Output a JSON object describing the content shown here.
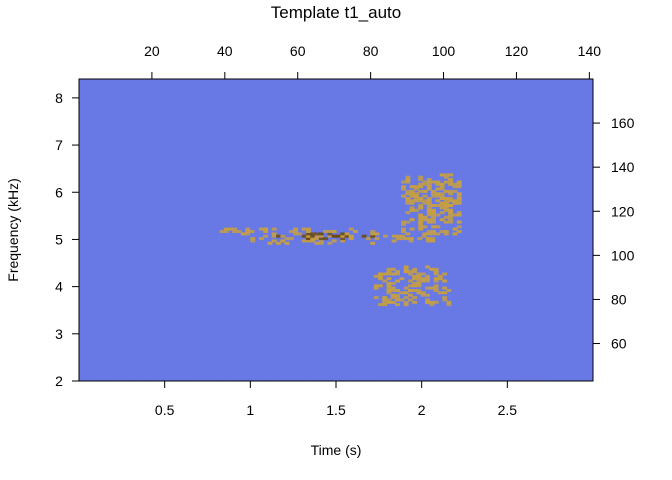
{
  "chart_data": {
    "type": "heatmap",
    "title": "Template t1_auto",
    "xlabel": "Time (s)",
    "ylabel": "Frequency (kHz)",
    "xlim": [
      0,
      3.0
    ],
    "ylim": [
      2,
      8.4
    ],
    "top_axis_lim": [
      0,
      141
    ],
    "right_axis_lim": [
      43,
      180
    ],
    "x_ticks": [
      "0.5",
      "1",
      "1.5",
      "2",
      "2.5"
    ],
    "y_ticks": [
      "2",
      "3",
      "4",
      "5",
      "6",
      "7",
      "8"
    ],
    "top_ticks": [
      "20",
      "40",
      "60",
      "80",
      "100",
      "120",
      "140"
    ],
    "right_ticks": [
      "60",
      "80",
      "100",
      "120",
      "140",
      "160"
    ],
    "background_color": "#6878e6",
    "signal_color": "#c8a040",
    "signal_dark_color": "#6b4a10",
    "grid": false,
    "legend": "none",
    "signal_segments": [
      {
        "t": [
          0.82,
          1.05
        ],
        "f": [
          5.1,
          5.2
        ]
      },
      {
        "t": [
          1.0,
          1.8
        ],
        "f": [
          4.9,
          5.2
        ]
      },
      {
        "t": [
          1.8,
          2.05
        ],
        "f": [
          4.95,
          5.1
        ]
      },
      {
        "t": [
          1.88,
          2.22
        ],
        "f": [
          5.1,
          6.35
        ]
      },
      {
        "t": [
          1.72,
          2.15
        ],
        "f": [
          3.6,
          4.4
        ]
      }
    ]
  }
}
